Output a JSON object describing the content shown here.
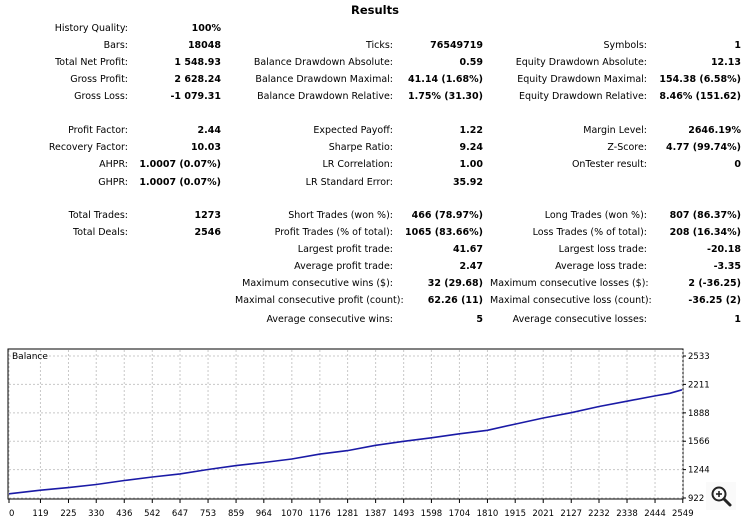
{
  "title": "Results",
  "col1": [
    {
      "label": "History Quality:",
      "value": "100%"
    },
    {
      "label": "Bars:",
      "value": "18048"
    },
    {
      "label": "Total Net Profit:",
      "value": "1 548.93"
    },
    {
      "label": "Gross Profit:",
      "value": "2 628.24"
    },
    {
      "label": "Gross Loss:",
      "value": "-1 079.31"
    },
    {
      "label": "Profit Factor:",
      "value": "2.44"
    },
    {
      "label": "Recovery Factor:",
      "value": "10.03"
    },
    {
      "label": "AHPR:",
      "value": "1.0007 (0.07%)"
    },
    {
      "label": "GHPR:",
      "value": "1.0007 (0.07%)"
    },
    {
      "label": "Total Trades:",
      "value": "1273"
    },
    {
      "label": "Total Deals:",
      "value": "2546"
    }
  ],
  "col2": [
    {
      "label": "Ticks:",
      "value": "76549719"
    },
    {
      "label": "Balance Drawdown Absolute:",
      "value": "0.59"
    },
    {
      "label": "Balance Drawdown Maximal:",
      "value": "41.14 (1.68%)"
    },
    {
      "label": "Balance Drawdown Relative:",
      "value": "1.75% (31.30)"
    },
    {
      "label": "Expected Payoff:",
      "value": "1.22"
    },
    {
      "label": "Sharpe Ratio:",
      "value": "9.24"
    },
    {
      "label": "LR Correlation:",
      "value": "1.00"
    },
    {
      "label": "LR Standard Error:",
      "value": "35.92"
    },
    {
      "label": "Short Trades (won %):",
      "value": "466 (78.97%)"
    },
    {
      "label": "Profit Trades (% of total):",
      "value": "1065 (83.66%)"
    },
    {
      "label": "Largest profit trade:",
      "value": "41.67"
    },
    {
      "label": "Average profit trade:",
      "value": "2.47"
    },
    {
      "label": "Maximum consecutive wins ($):",
      "value": "32 (29.68)"
    },
    {
      "label": "Maximal consecutive profit (count):",
      "value": "62.26 (11)"
    },
    {
      "label": "Average consecutive wins:",
      "value": "5"
    }
  ],
  "col3": [
    {
      "label": "Symbols:",
      "value": "1"
    },
    {
      "label": "Equity Drawdown Absolute:",
      "value": "12.13"
    },
    {
      "label": "Equity Drawdown Maximal:",
      "value": "154.38 (6.58%)"
    },
    {
      "label": "Equity Drawdown Relative:",
      "value": "8.46% (151.62)"
    },
    {
      "label": "Margin Level:",
      "value": "2646.19%"
    },
    {
      "label": "Z-Score:",
      "value": "4.77 (99.74%)"
    },
    {
      "label": "OnTester result:",
      "value": "0"
    },
    {
      "label": "Long Trades (won %):",
      "value": "807 (86.37%)"
    },
    {
      "label": "Loss Trades (% of total):",
      "value": "208 (16.34%)"
    },
    {
      "label": "Largest loss trade:",
      "value": "-20.18"
    },
    {
      "label": "Average loss trade:",
      "value": "-3.35"
    },
    {
      "label": "Maximum consecutive losses ($):",
      "value": "2 (-36.25)"
    },
    {
      "label": "Maximal consecutive loss (count):",
      "value": "-36.25 (2)"
    },
    {
      "label": "Average consecutive losses:",
      "value": "1"
    }
  ],
  "chart_data": {
    "type": "line",
    "title": "Balance",
    "xlabel": "",
    "ylabel": "",
    "x_ticks": [
      "0",
      "119",
      "225",
      "330",
      "436",
      "542",
      "647",
      "753",
      "859",
      "964",
      "1070",
      "1176",
      "1281",
      "1387",
      "1493",
      "1598",
      "1704",
      "1810",
      "1915",
      "2021",
      "2127",
      "2232",
      "2338",
      "2444",
      "2549"
    ],
    "y_ticks": [
      "922",
      "1244",
      "1566",
      "1888",
      "2211",
      "2533"
    ],
    "xlim": [
      0,
      2546
    ],
    "ylim": [
      922,
      2533
    ],
    "series": [
      {
        "name": "Balance",
        "color": "#1a1aa6",
        "x": [
          0,
          119,
          225,
          330,
          436,
          542,
          647,
          753,
          859,
          964,
          1070,
          1176,
          1281,
          1387,
          1493,
          1598,
          1704,
          1810,
          1915,
          2021,
          2127,
          2232,
          2338,
          2444,
          2500,
          2546
        ],
        "values": [
          970,
          1010,
          1040,
          1075,
          1120,
          1160,
          1195,
          1245,
          1290,
          1325,
          1365,
          1420,
          1460,
          1520,
          1565,
          1605,
          1650,
          1690,
          1760,
          1830,
          1890,
          1960,
          2020,
          2080,
          2110,
          2150
        ]
      }
    ]
  },
  "zoom_icon": "magnifier-icon"
}
